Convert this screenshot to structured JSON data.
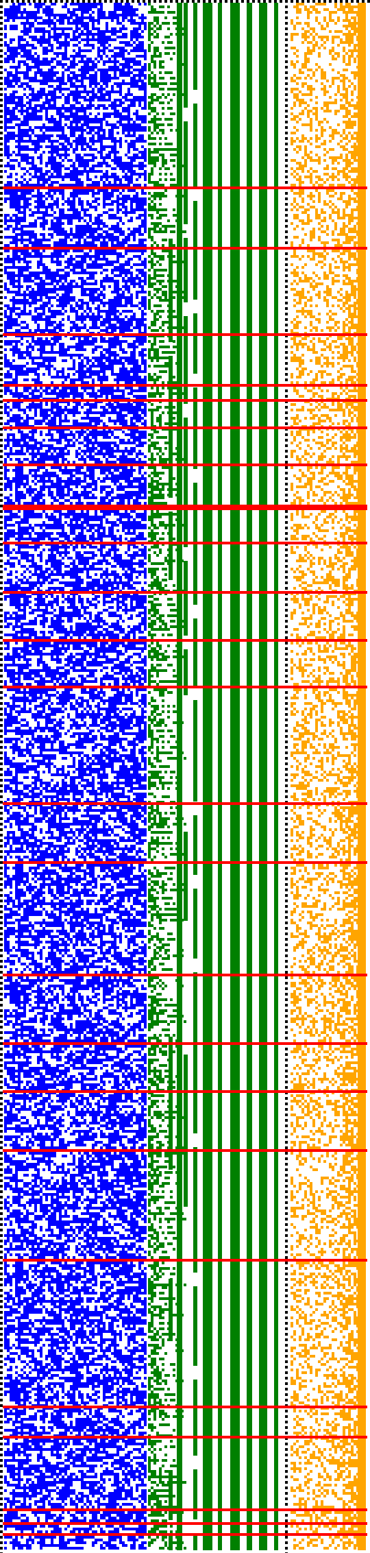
{
  "colors": {
    "background": "#ffffff",
    "border": "#000000",
    "blue_cells": "#0000ff",
    "green_cells": "#008000",
    "orange_cells": "#ffa500",
    "marker_lines": "#ff0000"
  },
  "panels": [
    {
      "id": "blue-panel",
      "color_key": "blue_cells",
      "kind": "random-bits",
      "fill_fraction": 0.5
    },
    {
      "id": "green-panel",
      "color_key": "green_cells",
      "kind": "carry-columns",
      "solid_columns": 7
    },
    {
      "id": "orange-panel",
      "color_key": "orange_cells",
      "kind": "sparse-bits",
      "fill_fraction": 0.35
    }
  ],
  "marker_line_count": 28
}
